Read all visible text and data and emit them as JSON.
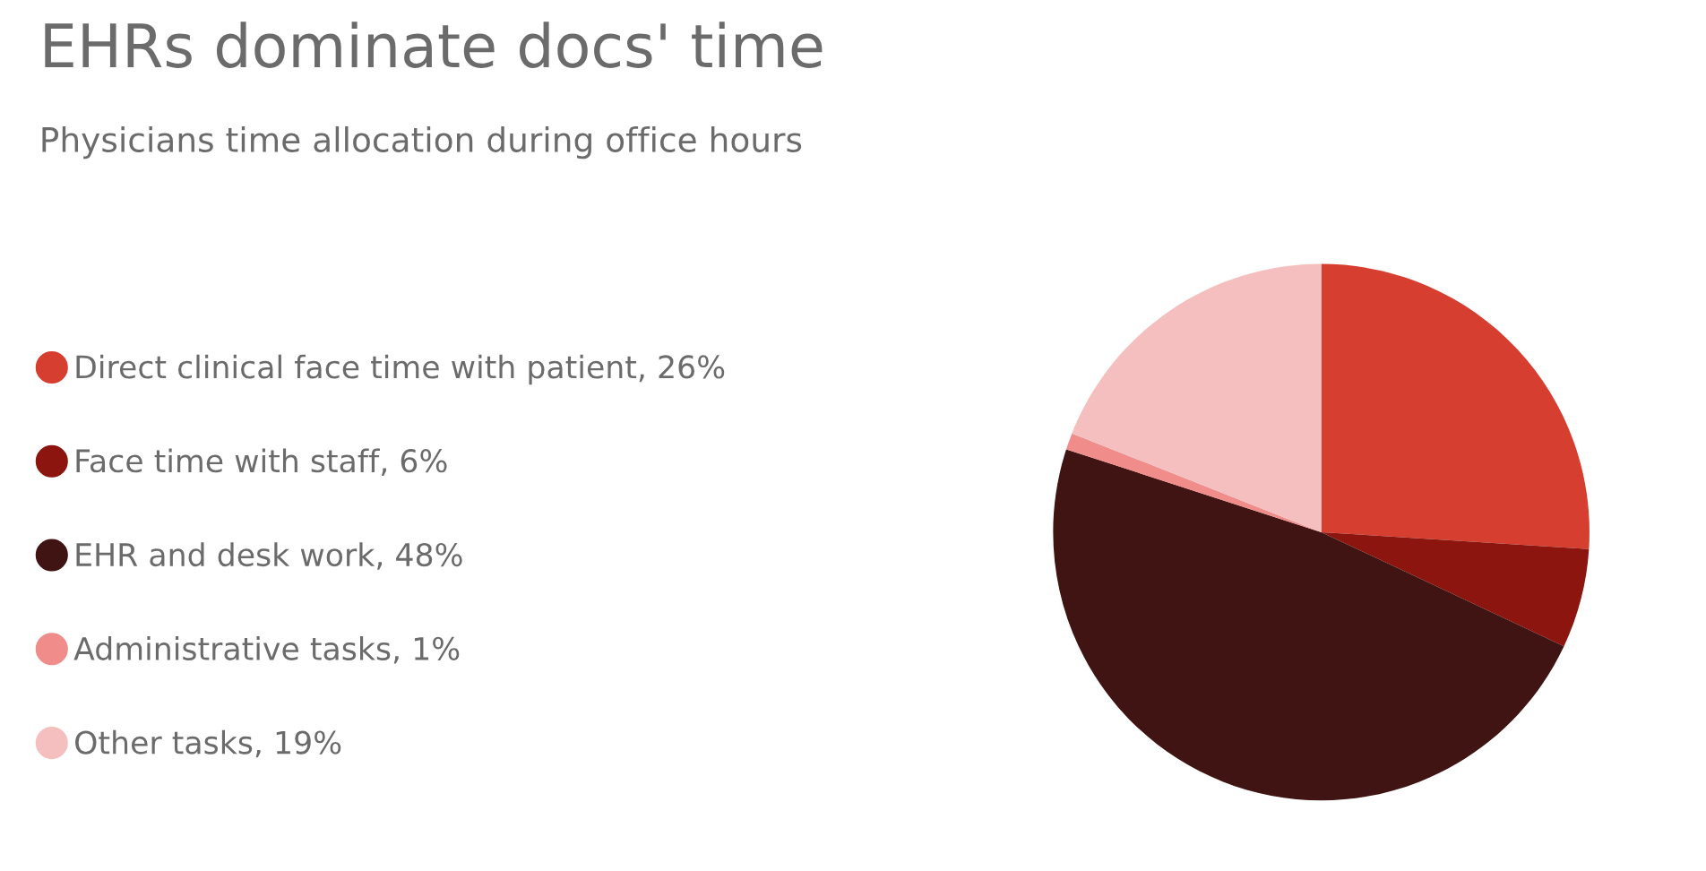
{
  "chart_data": {
    "type": "pie",
    "title": "EHRs dominate docs' time",
    "subtitle": "Physicians time allocation during office hours",
    "categories": [
      "Direct clinical face time with patient",
      "Face time with staff",
      "EHR and desk work",
      "Administrative tasks",
      "Other tasks"
    ],
    "values": [
      26,
      6,
      48,
      1,
      19
    ],
    "value_labels": [
      "26%",
      "6%",
      "48%",
      "1%",
      "19%"
    ],
    "colors": [
      "#d63f30",
      "#8c1510",
      "#3f1412",
      "#f08c8a",
      "#f5bfbf"
    ],
    "legend": "left"
  }
}
